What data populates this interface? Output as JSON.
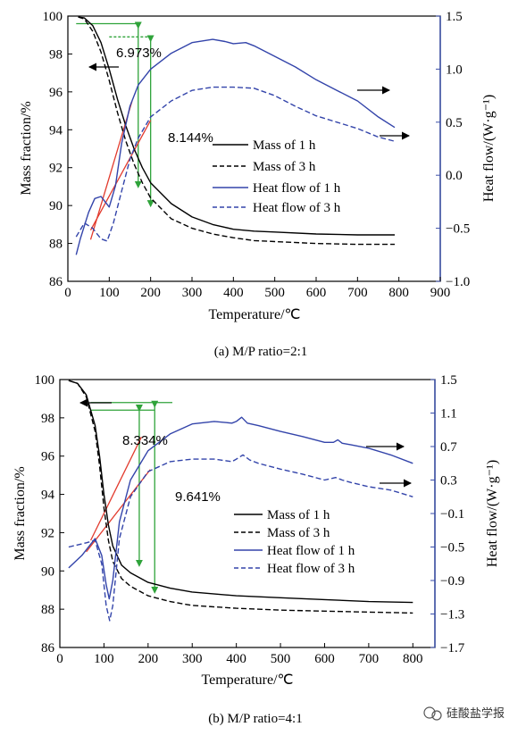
{
  "watermark": "硅酸盐学报",
  "colors": {
    "mass": "#000000",
    "heat": "#3344aa",
    "tangent": "#e23b2e",
    "guide": "#2fa33a",
    "frame": "#000000",
    "right_axis": "#3a4ea8"
  },
  "chart_data": [
    {
      "type": "line",
      "caption": "(a) M/P ratio=2:1",
      "xlabel": "Temperature/℃",
      "ylabel_left": "Mass fraction/%",
      "ylabel_right": "Heat flow/(W·g⁻¹)",
      "xlim": [
        0,
        900
      ],
      "ylim_left": [
        86,
        100
      ],
      "ylim_right": [
        -1.0,
        1.5
      ],
      "xticks": [
        "0",
        "100",
        "200",
        "300",
        "400",
        "500",
        "600",
        "700",
        "800",
        "900"
      ],
      "yticks_left": [
        "86",
        "88",
        "90",
        "92",
        "94",
        "96",
        "98",
        "100"
      ],
      "yticks_right": [
        "−1.0",
        "−0.5",
        "0.0",
        "0.5",
        "1.0",
        "1.5"
      ],
      "annotations": [
        "6.973%",
        "8.144%"
      ],
      "legend": [
        "Mass of 1 h",
        "Mass of 3 h",
        "Heat flow of 1 h",
        "Heat flow of 3 h"
      ],
      "series": [
        {
          "name": "Mass of 1 h",
          "axis": "left",
          "style": "solid",
          "color": "#000000",
          "x": [
            25,
            40,
            60,
            80,
            100,
            120,
            140,
            160,
            180,
            200,
            250,
            300,
            350,
            400,
            450,
            500,
            600,
            700,
            790
          ],
          "y": [
            99.95,
            99.9,
            99.5,
            98.6,
            97.2,
            95.6,
            94.2,
            93.0,
            92.0,
            91.2,
            90.1,
            89.4,
            89.0,
            88.75,
            88.65,
            88.6,
            88.5,
            88.45,
            88.45
          ]
        },
        {
          "name": "Mass of 3 h",
          "axis": "left",
          "style": "dash",
          "color": "#000000",
          "x": [
            25,
            40,
            60,
            80,
            100,
            120,
            140,
            160,
            180,
            200,
            250,
            300,
            350,
            400,
            450,
            500,
            600,
            700,
            790
          ],
          "y": [
            99.95,
            99.85,
            99.2,
            98.1,
            96.6,
            94.9,
            93.4,
            92.2,
            91.2,
            90.4,
            89.3,
            88.8,
            88.5,
            88.3,
            88.15,
            88.1,
            88.0,
            87.95,
            87.95
          ]
        },
        {
          "name": "Heat flow of 1 h",
          "axis": "right",
          "style": "solid",
          "color": "#3344aa",
          "x": [
            20,
            30,
            50,
            65,
            80,
            90,
            100,
            115,
            130,
            150,
            170,
            200,
            250,
            300,
            350,
            380,
            400,
            430,
            450,
            500,
            550,
            600,
            650,
            700,
            750,
            790
          ],
          "y": [
            -0.75,
            -0.6,
            -0.35,
            -0.22,
            -0.2,
            -0.25,
            -0.3,
            -0.1,
            0.3,
            0.65,
            0.85,
            1.0,
            1.15,
            1.25,
            1.28,
            1.26,
            1.24,
            1.25,
            1.22,
            1.12,
            1.02,
            0.9,
            0.8,
            0.7,
            0.55,
            0.45
          ]
        },
        {
          "name": "Heat flow of 3 h",
          "axis": "right",
          "style": "dash",
          "color": "#3344aa",
          "x": [
            20,
            40,
            60,
            80,
            95,
            110,
            130,
            150,
            170,
            200,
            250,
            300,
            350,
            400,
            450,
            500,
            550,
            600,
            650,
            700,
            750,
            790
          ],
          "y": [
            -0.58,
            -0.45,
            -0.5,
            -0.6,
            -0.62,
            -0.45,
            -0.15,
            0.15,
            0.35,
            0.55,
            0.7,
            0.8,
            0.83,
            0.83,
            0.82,
            0.75,
            0.65,
            0.56,
            0.5,
            0.44,
            0.36,
            0.32
          ]
        }
      ]
    },
    {
      "type": "line",
      "caption": "(b) M/P ratio=4:1",
      "xlabel": "Temperature/℃",
      "ylabel_left": "Mass fraction/%",
      "ylabel_right": "Heat flow/(W·g⁻¹)",
      "xlim": [
        0,
        850
      ],
      "ylim_left": [
        86,
        100
      ],
      "ylim_right": [
        -1.7,
        1.5
      ],
      "xticks": [
        "0",
        "100",
        "200",
        "300",
        "400",
        "500",
        "600",
        "700",
        "800"
      ],
      "yticks_left": [
        "86",
        "88",
        "90",
        "92",
        "94",
        "96",
        "98",
        "100"
      ],
      "yticks_right": [
        "−1.7",
        "−1.3",
        "−0.9",
        "−0.5",
        "−0.1",
        "0.3",
        "0.7",
        "1.1",
        "1.5"
      ],
      "annotations": [
        "8.334%",
        "9.641%"
      ],
      "legend": [
        "Mass of 1 h",
        "Mass of 3 h",
        "Heat flow of 1 h",
        "Heat flow of 3 h"
      ],
      "series": [
        {
          "name": "Mass of 1 h",
          "axis": "left",
          "style": "solid",
          "color": "#000000",
          "x": [
            20,
            40,
            60,
            80,
            90,
            100,
            110,
            120,
            140,
            160,
            200,
            250,
            300,
            400,
            500,
            600,
            700,
            800
          ],
          "y": [
            99.95,
            99.8,
            99.2,
            97.6,
            96.0,
            94.0,
            92.4,
            91.3,
            90.3,
            89.9,
            89.4,
            89.1,
            88.9,
            88.7,
            88.6,
            88.5,
            88.4,
            88.35
          ]
        },
        {
          "name": "Mass of 3 h",
          "axis": "left",
          "style": "dash",
          "color": "#000000",
          "x": [
            20,
            40,
            60,
            80,
            90,
            100,
            110,
            120,
            140,
            160,
            200,
            250,
            300,
            400,
            500,
            600,
            700,
            800
          ],
          "y": [
            99.95,
            99.8,
            99.1,
            97.3,
            95.5,
            93.3,
            91.6,
            90.5,
            89.6,
            89.2,
            88.7,
            88.4,
            88.2,
            88.05,
            87.95,
            87.9,
            87.85,
            87.8
          ]
        },
        {
          "name": "Heat flow of 1 h",
          "axis": "right",
          "style": "solid",
          "color": "#3344aa",
          "x": [
            20,
            50,
            80,
            95,
            105,
            112,
            120,
            135,
            160,
            200,
            250,
            300,
            350,
            390,
            400,
            412,
            425,
            450,
            500,
            550,
            600,
            620,
            630,
            640,
            660,
            700,
            750,
            800
          ],
          "y": [
            -0.75,
            -0.6,
            -0.4,
            -0.6,
            -0.95,
            -1.12,
            -0.9,
            -0.2,
            0.3,
            0.65,
            0.85,
            0.97,
            1.0,
            0.98,
            1.0,
            1.05,
            0.98,
            0.95,
            0.88,
            0.82,
            0.75,
            0.75,
            0.78,
            0.74,
            0.72,
            0.68,
            0.6,
            0.5
          ]
        },
        {
          "name": "Heat flow of 3 h",
          "axis": "right",
          "style": "dash",
          "color": "#3344aa",
          "x": [
            20,
            60,
            80,
            95,
            105,
            113,
            120,
            135,
            160,
            200,
            250,
            300,
            350,
            390,
            400,
            415,
            430,
            450,
            500,
            550,
            600,
            625,
            640,
            660,
            700,
            750,
            800
          ],
          "y": [
            -0.5,
            -0.45,
            -0.42,
            -0.7,
            -1.2,
            -1.38,
            -1.2,
            -0.4,
            0.1,
            0.4,
            0.52,
            0.55,
            0.55,
            0.52,
            0.55,
            0.6,
            0.54,
            0.5,
            0.43,
            0.37,
            0.3,
            0.33,
            0.3,
            0.27,
            0.22,
            0.18,
            0.1
          ]
        }
      ]
    }
  ]
}
